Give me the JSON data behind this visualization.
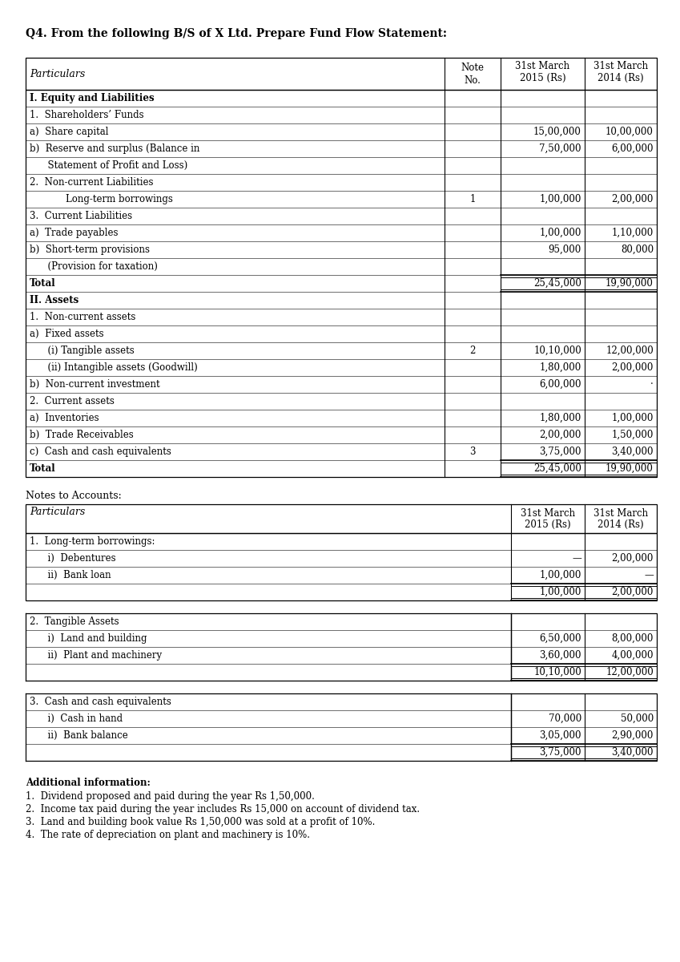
{
  "title": "Q4. From the following B/S of X Ltd. Prepare Fund Flow Statement:",
  "bg_color": "#ffffff",
  "table1_rows": [
    {
      "label": "I. Equity and Liabilities",
      "bold": true,
      "note": "",
      "val2015": "",
      "val2014": ""
    },
    {
      "label": "1.  Shareholders’ Funds",
      "bold": false,
      "note": "",
      "val2015": "",
      "val2014": ""
    },
    {
      "label": "a)  Share capital",
      "bold": false,
      "note": "",
      "val2015": "15,00,000",
      "val2014": "10,00,000"
    },
    {
      "label": "b)  Reserve and surplus (Balance in",
      "bold": false,
      "note": "",
      "val2015": "7,50,000",
      "val2014": "6,00,000"
    },
    {
      "label": "      Statement of Profit and Loss)",
      "bold": false,
      "note": "",
      "val2015": "",
      "val2014": ""
    },
    {
      "label": "2.  Non-current Liabilities",
      "bold": false,
      "note": "",
      "val2015": "",
      "val2014": ""
    },
    {
      "label": "            Long-term borrowings",
      "bold": false,
      "note": "1",
      "val2015": "1,00,000",
      "val2014": "2,00,000"
    },
    {
      "label": "3.  Current Liabilities",
      "bold": false,
      "note": "",
      "val2015": "",
      "val2014": ""
    },
    {
      "label": "a)  Trade payables",
      "bold": false,
      "note": "",
      "val2015": "1,00,000",
      "val2014": "1,10,000"
    },
    {
      "label": "b)  Short-term provisions",
      "bold": false,
      "note": "",
      "val2015": "95,000",
      "val2014": "80,000"
    },
    {
      "label": "      (Provision for taxation)",
      "bold": false,
      "note": "",
      "val2015": "",
      "val2014": ""
    },
    {
      "label": "Total",
      "bold": true,
      "note": "",
      "val2015": "25,45,000",
      "val2014": "19,90,000",
      "total": true
    },
    {
      "label": "II. Assets",
      "bold": true,
      "note": "",
      "val2015": "",
      "val2014": ""
    },
    {
      "label": "1.  Non-current assets",
      "bold": false,
      "note": "",
      "val2015": "",
      "val2014": ""
    },
    {
      "label": "a)  Fixed assets",
      "bold": false,
      "note": "",
      "val2015": "",
      "val2014": ""
    },
    {
      "label": "      (i) Tangible assets",
      "bold": false,
      "note": "2",
      "val2015": "10,10,000",
      "val2014": "12,00,000"
    },
    {
      "label": "      (ii) Intangible assets (Goodwill)",
      "bold": false,
      "note": "",
      "val2015": "1,80,000",
      "val2014": "2,00,000"
    },
    {
      "label": "b)  Non-current investment",
      "bold": false,
      "note": "",
      "val2015": "6,00,000",
      "val2014": "·"
    },
    {
      "label": "2.  Current assets",
      "bold": false,
      "note": "",
      "val2015": "",
      "val2014": ""
    },
    {
      "label": "a)  Inventories",
      "bold": false,
      "note": "",
      "val2015": "1,80,000",
      "val2014": "1,00,000"
    },
    {
      "label": "b)  Trade Receivables",
      "bold": false,
      "note": "",
      "val2015": "2,00,000",
      "val2014": "1,50,000"
    },
    {
      "label": "c)  Cash and cash equivalents",
      "bold": false,
      "note": "3",
      "val2015": "3,75,000",
      "val2014": "3,40,000"
    },
    {
      "label": "Total",
      "bold": true,
      "note": "",
      "val2015": "25,45,000",
      "val2014": "19,90,000",
      "total": true
    }
  ],
  "note1_rows": [
    {
      "label": "1.  Long-term borrowings:",
      "val2015": "",
      "val2014": ""
    },
    {
      "label": "      i)  Debentures",
      "val2015": "—",
      "val2014": "2,00,000"
    },
    {
      "label": "      ii)  Bank loan",
      "val2015": "1,00,000",
      "val2014": "—"
    },
    {
      "label": "",
      "val2015": "1,00,000",
      "val2014": "2,00,000",
      "total": true
    }
  ],
  "note2_rows": [
    {
      "label": "2.  Tangible Assets",
      "val2015": "",
      "val2014": ""
    },
    {
      "label": "      i)  Land and building",
      "val2015": "6,50,000",
      "val2014": "8,00,000"
    },
    {
      "label": "      ii)  Plant and machinery",
      "val2015": "3,60,000",
      "val2014": "4,00,000"
    },
    {
      "label": "",
      "val2015": "10,10,000",
      "val2014": "12,00,000",
      "total": true
    }
  ],
  "note3_rows": [
    {
      "label": "3.  Cash and cash equivalents",
      "val2015": "",
      "val2014": ""
    },
    {
      "label": "      i)  Cash in hand",
      "val2015": "70,000",
      "val2014": "50,000"
    },
    {
      "label": "      ii)  Bank balance",
      "val2015": "3,05,000",
      "val2014": "2,90,000"
    },
    {
      "label": "",
      "val2015": "3,75,000",
      "val2014": "3,40,000",
      "total": true
    }
  ],
  "additional_info": [
    "Additional information:",
    "1.  Dividend proposed and paid during the year Rs 1,50,000.",
    "2.  Income tax paid during the year includes Rs 15,000 on account of dividend tax.",
    "3.  Land and building book value Rs 1,50,000 was sold at a profit of 10%.",
    "4.  The rate of depreciation on plant and machinery is 10%."
  ]
}
